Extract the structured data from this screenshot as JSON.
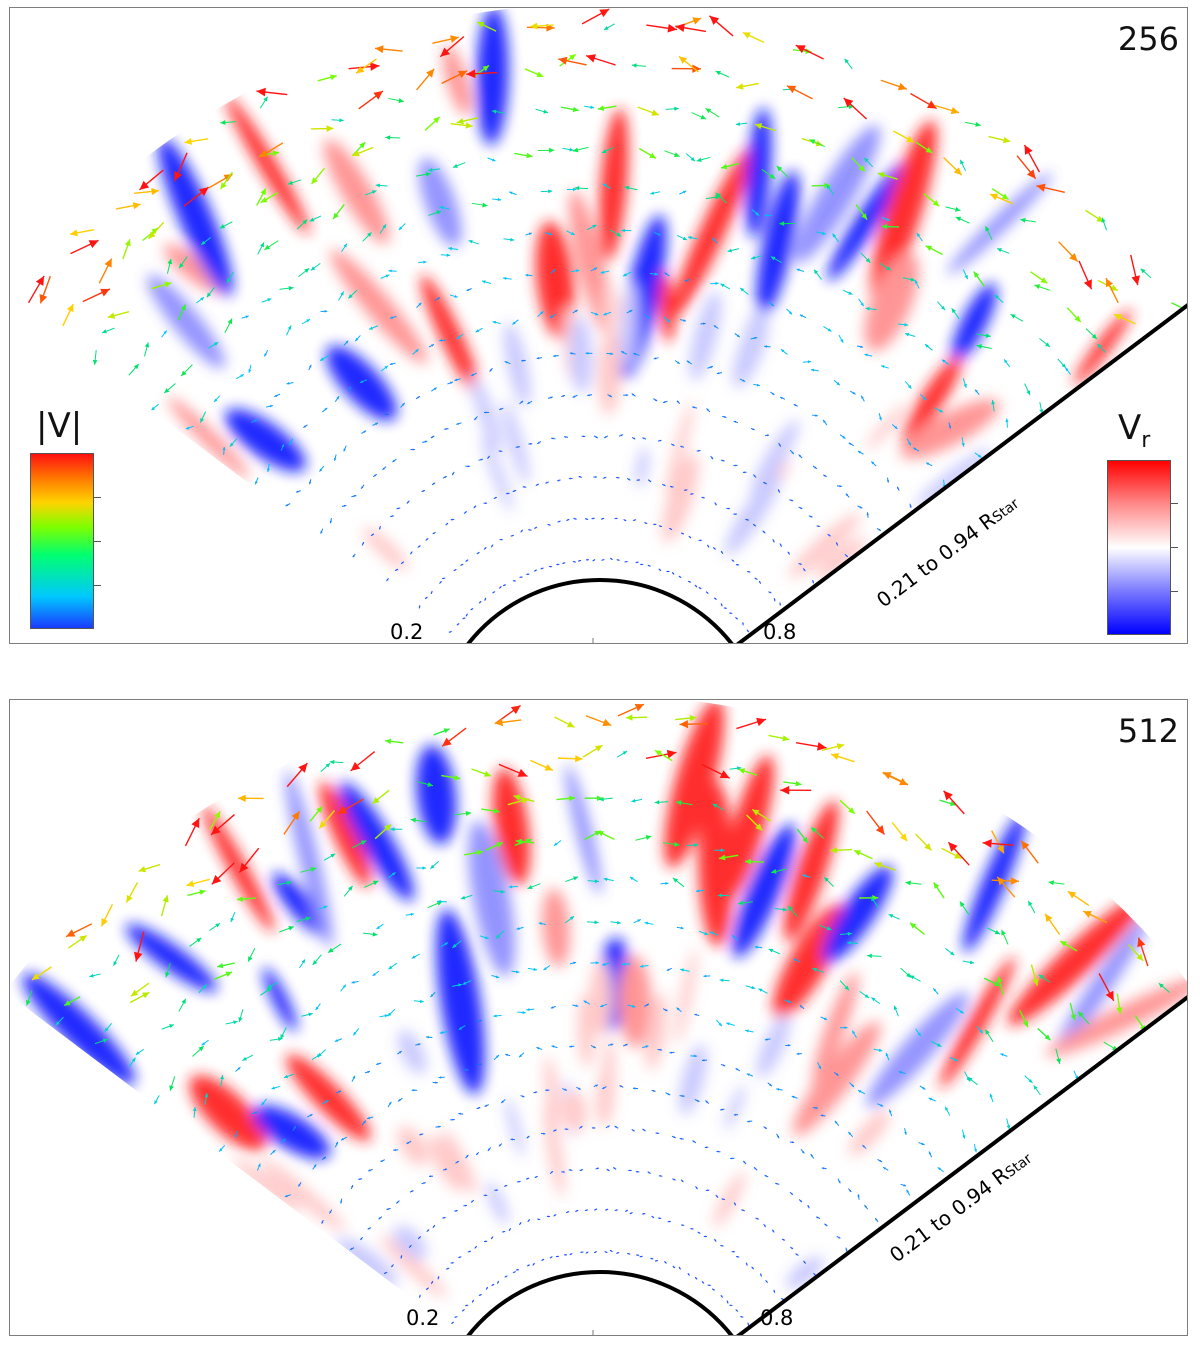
{
  "panels": [
    {
      "id": "top",
      "resolution": "256",
      "inner_label": "0.2",
      "outer_label": "0.8",
      "range_label_main": "0.21 to 0.94 R",
      "range_label_sub": "Star",
      "colorbar_speed_title": "|V|",
      "colorbar_radial_title_main": "V",
      "colorbar_radial_title_sub": "r",
      "show_colorbars": true,
      "seed": 11
    },
    {
      "id": "bottom",
      "resolution": "512",
      "inner_label": "0.2",
      "outer_label": "0.8",
      "range_label_main": "0.21 to 0.94 R",
      "range_label_sub": "Star",
      "show_colorbars": false,
      "seed": 29
    }
  ],
  "colors": {
    "outflow": "#ff0000",
    "inflow": "#0000ff",
    "arrow_slow": "#1e90ff",
    "arrow_fast": "#ff2000"
  }
}
